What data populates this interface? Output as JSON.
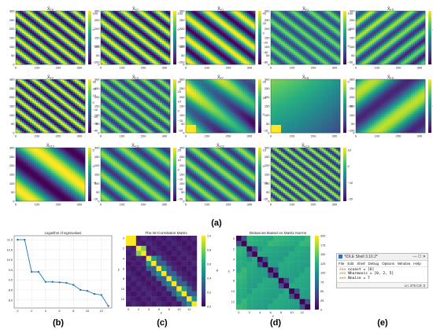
{
  "figure_labels": {
    "a": "(a)",
    "b": "(b)",
    "c": "(c)",
    "d": "(d)",
    "e": "(e)"
  },
  "colormap": [
    "#440154",
    "#472d7b",
    "#3b528b",
    "#2c728e",
    "#21918c",
    "#28ae80",
    "#5ec962",
    "#addc30",
    "#fde725"
  ],
  "chart_data": [
    {
      "type": "heatmap",
      "panel": "a",
      "x_ticks": [
        "0",
        "100",
        "200",
        "300"
      ],
      "y_ticks": [
        "0",
        "50",
        "100",
        "150",
        "200",
        "250",
        "300"
      ],
      "panels": [
        {
          "title": "X̂ₖ₆",
          "cbar": [
            "100",
            "0",
            "−100",
            "−200"
          ],
          "vmin": -250,
          "vmax": 150,
          "pattern": "anti",
          "freq": 9,
          "amp": 1.0,
          "grad": 0.0
        },
        {
          "title": "X̂ₖ₇",
          "cbar": [
            "100",
            "0",
            "−100",
            "−200"
          ],
          "vmin": -250,
          "vmax": 150,
          "pattern": "anti",
          "freq": 8,
          "amp": 1.0,
          "grad": 0.0
        },
        {
          "title": "X̂ₖ₁",
          "cbar": [
            "40",
            "20",
            "0",
            "−20",
            "−40",
            "−60"
          ],
          "vmin": -60,
          "vmax": 45,
          "pattern": "anti",
          "freq": 5,
          "amp": 1.0,
          "grad": 0.0
        },
        {
          "title": "X̂ₖ₁",
          "cbar": [
            "100",
            "50",
            "0",
            "−50"
          ],
          "vmin": -80,
          "vmax": 110,
          "pattern": "anti",
          "freq": 8,
          "amp": 0.6,
          "grad": 0.0
        },
        {
          "title": "X̂ₖ₅",
          "cbar": [
            "20",
            "0",
            "−20",
            "−40"
          ],
          "vmin": -45,
          "vmax": 25,
          "pattern": "diag",
          "freq": 7,
          "amp": 0.7,
          "grad": 0.2
        },
        {
          "title": "X̂ₖ₂",
          "cbar": [
            "30",
            "20",
            "10",
            "0",
            "−10",
            "−20",
            "−30",
            "−40"
          ],
          "vmin": -45,
          "vmax": 35,
          "pattern": "anti",
          "freq": 10,
          "amp": 1.0,
          "grad": 0.0
        },
        {
          "title": "X̂ₖ₃",
          "cbar": [
            "30",
            "20",
            "10",
            "0",
            "−10",
            "−20"
          ],
          "vmin": -25,
          "vmax": 35,
          "pattern": "anti",
          "freq": 9,
          "amp": 0.7,
          "grad": 0.0
        },
        {
          "title": "X̂ₖ₇",
          "cbar": [
            "20",
            "10",
            "0",
            "−10"
          ],
          "vmin": -15,
          "vmax": 25,
          "pattern": "anti",
          "freq": 3,
          "amp": 0.6,
          "grad": 0.5
        },
        {
          "title": "X̂ₖ₈",
          "cbar": [
            "0",
            "−50",
            "−100"
          ],
          "vmin": -120,
          "vmax": 20,
          "pattern": "flat",
          "freq": 1,
          "amp": 0.2,
          "grad": 0.6
        },
        {
          "title": "X̂ₖ₉",
          "cbar": [
            "20",
            "10",
            "0",
            "−10",
            "−20"
          ],
          "vmin": -25,
          "vmax": 25,
          "pattern": "diag",
          "freq": 2,
          "amp": 0.8,
          "grad": 0.0
        },
        {
          "title": "X̂ₖ₁₀",
          "cbar": [
            "5",
            "0",
            "−5",
            "−10"
          ],
          "vmin": -12,
          "vmax": 7,
          "pattern": "anti",
          "freq": 2,
          "amp": 1.0,
          "grad": 0.0
        },
        {
          "title": "X̂ₖ₁₁",
          "cbar": [
            "20",
            "10",
            "0",
            "−10",
            "−20",
            "−30"
          ],
          "vmin": -30,
          "vmax": 25,
          "pattern": "anti",
          "freq": 5,
          "amp": 0.7,
          "grad": 0.0
        },
        {
          "title": "X̂ₖ₁₂",
          "cbar": [
            "10",
            "0",
            "−10",
            "−20"
          ],
          "vmin": -25,
          "vmax": 15,
          "pattern": "anti",
          "freq": 6,
          "amp": 0.7,
          "grad": 0.0
        },
        {
          "title": "X̂ₖ₁₃",
          "cbar": [
            "10",
            "0",
            "−10",
            "−20"
          ],
          "vmin": -25,
          "vmax": 15,
          "pattern": "anti",
          "freq": 12,
          "amp": 0.8,
          "grad": 0.0
        }
      ]
    },
    {
      "type": "line",
      "panel": "b",
      "title": "Logarithm of eigenvalues",
      "x": [
        0,
        1,
        2,
        3,
        4,
        5,
        6,
        7,
        8,
        9,
        10,
        11,
        12,
        13
      ],
      "values": [
        11.0,
        11.0,
        9.4,
        9.4,
        8.9,
        8.9,
        8.88,
        8.85,
        8.75,
        8.5,
        8.45,
        8.3,
        8.25,
        7.7
      ],
      "xticks": [
        "0",
        "2",
        "4",
        "6",
        "8",
        "10",
        "12"
      ],
      "yticks": [
        "11.0",
        "10.5",
        "10.0",
        "9.5",
        "9.0",
        "8.5",
        "8.0"
      ],
      "ylim": [
        7.6,
        11.2
      ],
      "color": "#1f77b4",
      "grid": true
    },
    {
      "type": "heatmap",
      "panel": "c",
      "title": "The W-Correlation Matrix",
      "size": 14,
      "ticks": [
        "0",
        "2",
        "4",
        "6",
        "8",
        "10",
        "12"
      ],
      "cbar": [
        "1.0",
        "0.8",
        "0.6",
        "0.4",
        "0.2",
        "0.0"
      ],
      "cbar_label": "ρ",
      "xlabel": "F",
      "ylabel": "F",
      "blocks": [
        [
          0,
          1,
          1.0
        ],
        [
          2,
          3,
          0.8
        ],
        [
          4,
          5,
          0.55
        ],
        [
          6,
          7,
          0.5
        ],
        [
          8,
          9,
          0.45
        ],
        [
          10,
          11,
          0.55
        ],
        [
          12,
          13,
          0.5
        ]
      ]
    },
    {
      "type": "heatmap",
      "panel": "d",
      "title": "Distances Based on Matrix Norms",
      "size": 14,
      "ticks": [
        "0",
        "2",
        "4",
        "6",
        "8",
        "10",
        "12"
      ],
      "cbar": [
        "200",
        "175",
        "150",
        "125",
        "100",
        "75",
        "50",
        "25",
        "0"
      ],
      "xlabel": "F",
      "ylabel": "F"
    }
  ],
  "idle": {
    "title": "*IDLE Shell 3.10.2*",
    "menu": [
      "File",
      "Edit",
      "Shell",
      "Debug",
      "Options",
      "Window",
      "Help"
    ],
    "lines": [
      {
        "p": ">>> ",
        "t": "ncoast = [6]"
      },
      {
        "p": ">>> ",
        "t": "Nharmonic = [0, 2, 5]"
      },
      {
        "p": ">>> ",
        "t": "Nnoise = 7"
      }
    ],
    "status": "Ln: 375   Col: 0"
  }
}
